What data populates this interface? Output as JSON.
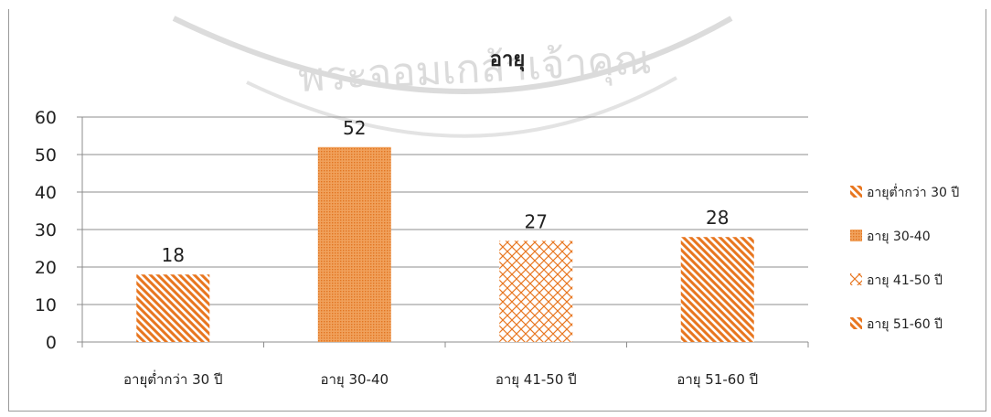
{
  "chart_data": {
    "type": "bar",
    "title": "อายุ",
    "categories": [
      "อายุต่ำกว่า 30 ปี",
      "อายุ 30-40",
      "อายุ 41-50 ปี",
      "อายุ 51-60 ปี"
    ],
    "values": [
      18,
      52,
      27,
      28
    ],
    "data_labels": [
      "18",
      "52",
      "27",
      "28"
    ],
    "ylim": [
      0,
      60
    ],
    "yticks": [
      "0",
      "10",
      "20",
      "30",
      "40",
      "50",
      "60"
    ],
    "grid": true,
    "legend_position": "right",
    "legend": [
      "อายุต่ำกว่า 30 ปี",
      "อายุ 30-40",
      "อายุ 41-50 ปี",
      "อายุ 51-60 ปี"
    ],
    "colors": {
      "bar": "#e8761f",
      "bar_light": "#f3a35a",
      "grid": "#8c8c8c",
      "axis": "#8c8c8c"
    },
    "patterns": [
      "diagonal-stripes",
      "dots",
      "weave",
      "diagonal-stripes"
    ]
  },
  "watermark": "พระจอมเกล้าเจ้าคุณ"
}
